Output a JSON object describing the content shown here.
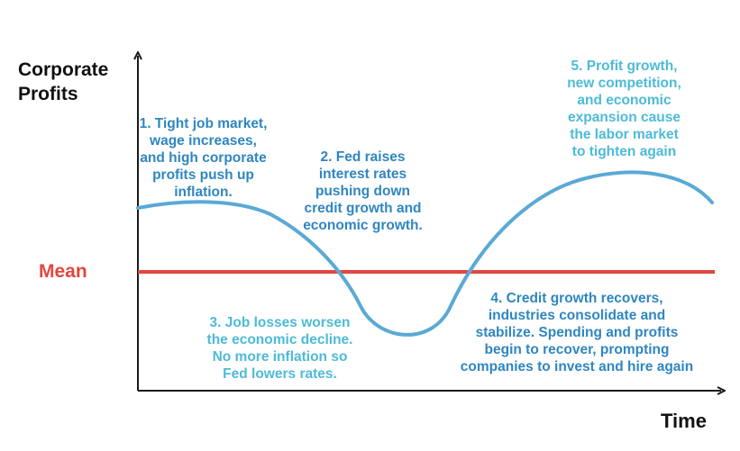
{
  "axes": {
    "y_title_lines": [
      "Corporate",
      "Profits"
    ],
    "x_title": "Time"
  },
  "mean_label": "Mean",
  "colors": {
    "curve": "#5aa9d6",
    "mean": "#e2463f",
    "axis": "#1a1a1a",
    "annotation_dark": "#2f86c0",
    "annotation_light": "#4dbbd8"
  },
  "annotations": [
    {
      "id": 1,
      "lines": [
        "1. Tight job market,",
        "wage increases,",
        "and high corporate",
        "profits push up",
        "inflation."
      ]
    },
    {
      "id": 2,
      "lines": [
        "2. Fed raises",
        "interest rates",
        "pushing down",
        "credit growth and",
        "economic growth."
      ]
    },
    {
      "id": 3,
      "lines": [
        "3. Job losses worsen",
        "the economic decline.",
        "No more inflation so",
        "Fed lowers rates."
      ]
    },
    {
      "id": 4,
      "lines": [
        "4. Credit growth recovers,",
        "industries consolidate and",
        "stabilize. Spending and profits",
        "begin to recover, prompting",
        "companies to invest and hire again"
      ]
    },
    {
      "id": 5,
      "lines": [
        "5. Profit growth,",
        "new competition,",
        "and economic",
        "expansion cause",
        "the labor market",
        "to tighten again"
      ]
    }
  ]
}
